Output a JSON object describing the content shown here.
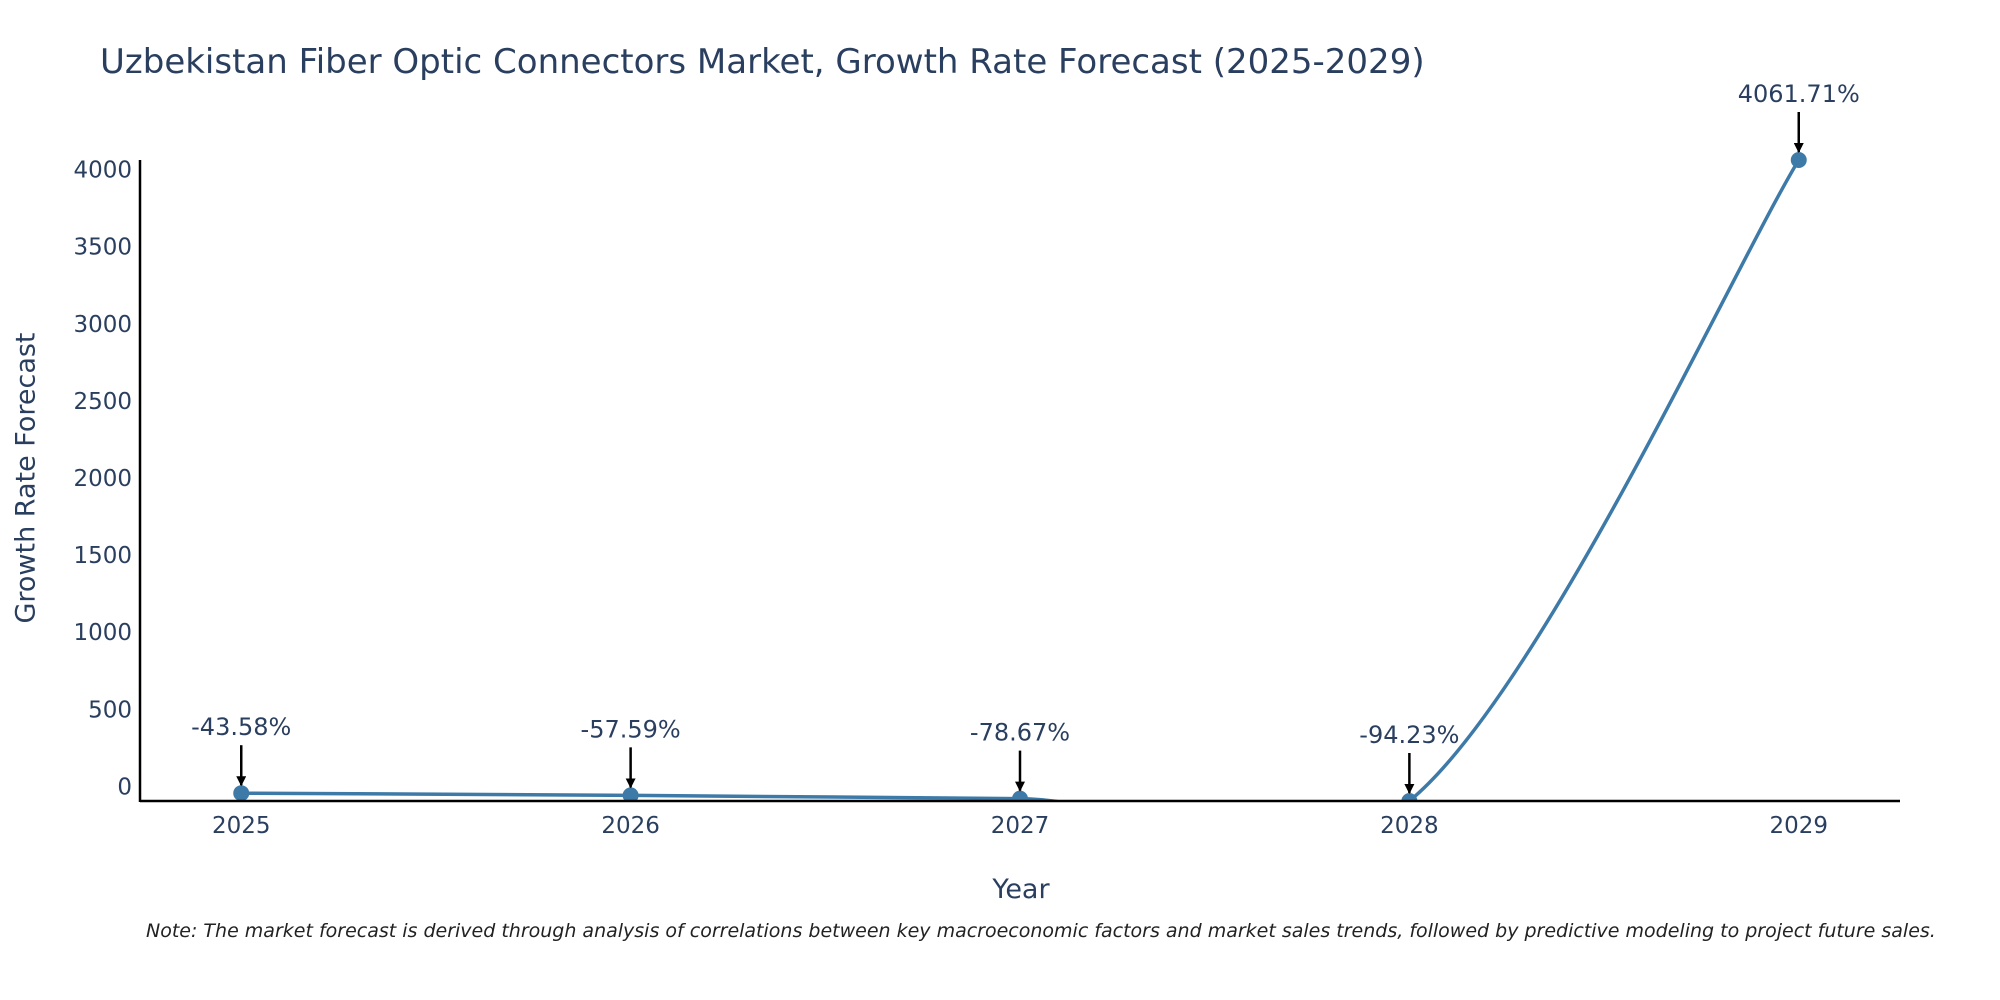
{
  "chart_data": {
    "type": "line",
    "title": "Uzbekistan Fiber Optic Connectors Market, Growth Rate Forecast (2025-2029)",
    "xlabel": "Year",
    "ylabel": "Growth Rate Forecast",
    "categories": [
      "2025",
      "2026",
      "2027",
      "2028",
      "2029"
    ],
    "x": [
      2025,
      2026,
      2027,
      2028,
      2029
    ],
    "series": [
      {
        "values": [
          -43.58,
          -57.59,
          -78.67,
          -94.23,
          4061.71
        ],
        "labels": [
          "-43.58%",
          "-57.59%",
          "-78.67%",
          "-94.23%",
          "4061.71%"
        ],
        "color": "#3d7aa8",
        "line_shape": "spline"
      }
    ],
    "xlim": [
      2024.74,
      2029.26
    ],
    "ylim": [
      -94.23,
      4061.71
    ],
    "yticks": [
      0,
      500,
      1000,
      1500,
      2000,
      2500,
      3000,
      3500,
      4000
    ],
    "grid": false,
    "legend": "none"
  },
  "note": "Note: The market forecast is derived through analysis of correlations between key macroeconomic factors and market sales trends, followed by predictive modeling to project future sales."
}
